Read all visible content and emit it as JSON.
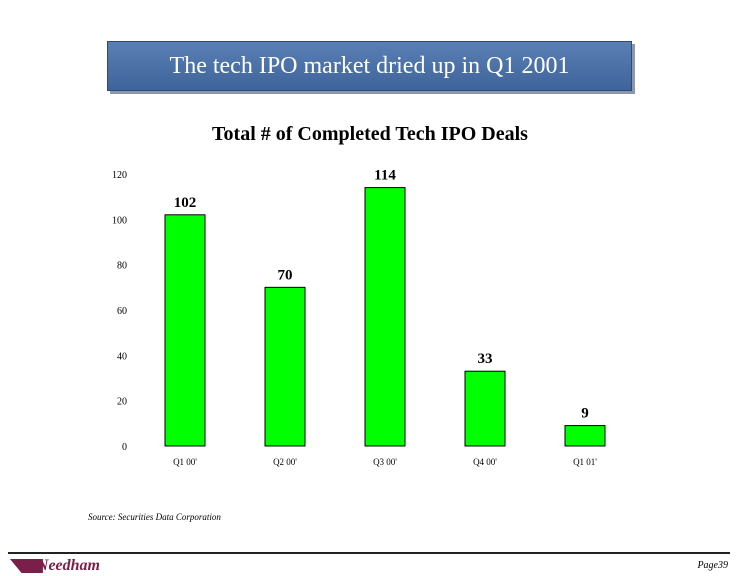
{
  "header": {
    "title": "The tech IPO market dried up in Q1 2001"
  },
  "chart_data": {
    "type": "bar",
    "title": "Total # of Completed Tech IPO Deals",
    "categories": [
      "Q1 00'",
      "Q2 00'",
      "Q3 00'",
      "Q4 00'",
      "Q1 01'"
    ],
    "values": [
      102,
      70,
      114,
      33,
      9
    ],
    "data_labels": [
      "102",
      "70",
      "114",
      "33",
      "9"
    ],
    "y_ticks": [
      "0",
      "20",
      "40",
      "60",
      "80",
      "100",
      "120"
    ],
    "ylim": [
      0,
      120
    ],
    "bar_color": "#00ff00",
    "grid": false,
    "legend": "none"
  },
  "footer": {
    "source": "Source:  Securities Data Corporation",
    "logo_text": "Needham",
    "page": "Page39"
  }
}
